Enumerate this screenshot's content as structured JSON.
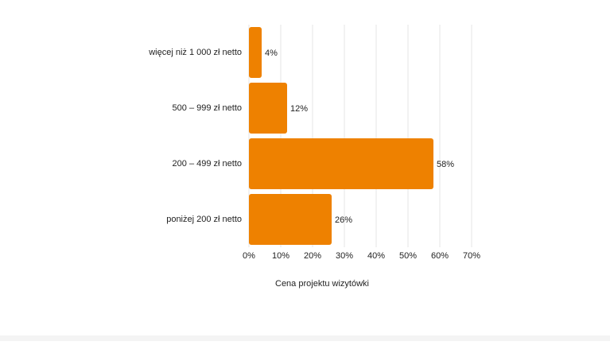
{
  "chart_data": {
    "type": "bar",
    "orientation": "horizontal",
    "x_label": "Cena projektu wizytówki",
    "categories": [
      "więcej niż 1 000 zł netto",
      "500 – 999 zł netto",
      "200 – 499 zł netto",
      "poniżej 200 zł netto"
    ],
    "values": [
      4,
      12,
      58,
      26
    ],
    "value_labels": [
      "4%",
      "12%",
      "58%",
      "26%"
    ],
    "color": "#ee8100",
    "xlim": [
      0,
      70
    ],
    "xticks": [
      {
        "value": 0,
        "label": "0%"
      },
      {
        "value": 10,
        "label": "10%"
      },
      {
        "value": 20,
        "label": "20%"
      },
      {
        "value": 30,
        "label": "30%"
      },
      {
        "value": 40,
        "label": "40%"
      },
      {
        "value": 50,
        "label": "50%"
      },
      {
        "value": 60,
        "label": "60%"
      },
      {
        "value": 70,
        "label": "70%"
      }
    ],
    "grid": true
  }
}
